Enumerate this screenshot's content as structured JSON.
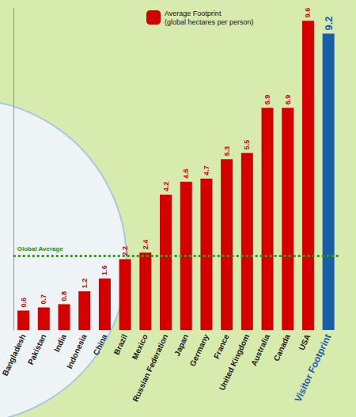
{
  "chart_data": {
    "type": "bar",
    "categories": [
      "Bangladesh",
      "Pakistan",
      "India",
      "Indonesia",
      "China",
      "Brazil",
      "Mexico",
      "Russian Federation",
      "Japan",
      "Germany",
      "France",
      "United Kingdom",
      "Australia",
      "Canada",
      "USA",
      "Visitor Footprint"
    ],
    "series": [
      {
        "name": "Average Footprint (global hectares per person)",
        "color": "#d40000",
        "values": [
          0.6,
          0.7,
          0.8,
          1.2,
          1.6,
          2.2,
          2.4,
          4.2,
          4.6,
          4.7,
          5.3,
          5.5,
          6.9,
          6.9,
          9.6,
          9.2
        ],
        "colors": [
          "#d40000",
          "#d40000",
          "#d40000",
          "#d40000",
          "#d40000",
          "#d40000",
          "#d40000",
          "#d40000",
          "#d40000",
          "#d40000",
          "#d40000",
          "#d40000",
          "#d40000",
          "#d40000",
          "#d40000",
          "#1a5ea8"
        ]
      }
    ],
    "annotations": [
      {
        "text": "Global Average",
        "y": 2.3
      }
    ],
    "ylim": [
      0,
      10
    ],
    "grid": false,
    "legend": "top",
    "data_labels": true,
    "tick_labels": "x"
  }
}
